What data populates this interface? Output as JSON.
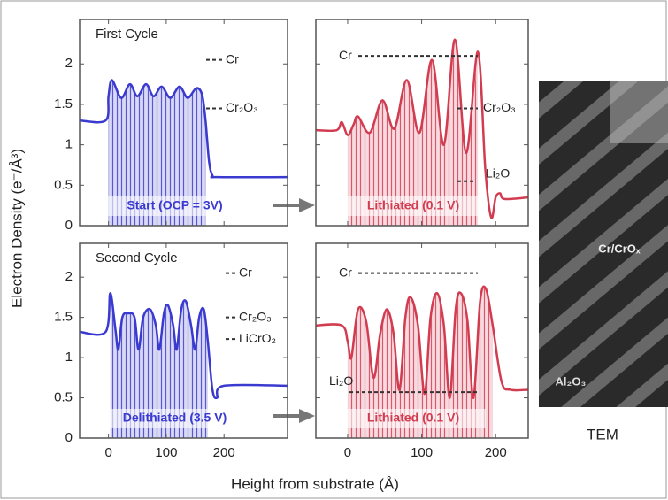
{
  "y_label": "Electron Density (e⁻/Å³)",
  "x_label": "Height from substrate (Å)",
  "image": {
    "labels": [
      "Cr/CrOₓ",
      "Al₂O₃"
    ],
    "caption": "TEM"
  },
  "chart_data": [
    {
      "type": "line",
      "title": "First Cycle",
      "label": "Start (OCP = 3V)",
      "xlim": [
        -50,
        310
      ],
      "ylim": [
        0,
        2.55
      ],
      "xticks": [
        0,
        100,
        200
      ],
      "yticks": [
        0,
        0.5,
        1,
        1.5,
        2
      ],
      "series": [
        {
          "color": "#3a3ad0",
          "x": [
            -50,
            -5,
            0,
            6,
            22,
            37,
            50,
            65,
            78,
            92,
            107,
            123,
            137,
            152,
            162,
            168,
            174,
            180,
            190,
            310
          ],
          "values": [
            1.3,
            1.3,
            1.6,
            1.8,
            1.58,
            1.75,
            1.6,
            1.75,
            1.6,
            1.72,
            1.58,
            1.72,
            1.58,
            1.7,
            1.62,
            1.3,
            0.8,
            0.62,
            0.6,
            0.6
          ]
        }
      ],
      "annotations": [
        {
          "label": "Cr",
          "y": 2.05
        },
        {
          "label": "Cr₂O₃",
          "y": 1.45
        }
      ]
    },
    {
      "type": "line",
      "label": "Lithiated (0.1 V)",
      "xlim": [
        -43,
        244
      ],
      "ylim": [
        0,
        2.55
      ],
      "xticks": [
        0,
        100,
        200
      ],
      "yticks": [
        0,
        0.5,
        1,
        1.5,
        2
      ],
      "series": [
        {
          "color": "#d23c50",
          "x": [
            -43,
            -15,
            -8,
            0,
            8,
            14,
            30,
            47,
            63,
            80,
            97,
            114,
            130,
            145,
            160,
            176,
            186,
            194,
            200,
            206,
            212,
            244
          ],
          "values": [
            1.18,
            1.18,
            1.28,
            1.12,
            1.25,
            1.35,
            1.15,
            1.55,
            1.2,
            1.8,
            1.15,
            2.05,
            1.0,
            2.3,
            0.9,
            2.15,
            0.7,
            0.1,
            0.35,
            0.4,
            0.33,
            0.35
          ]
        }
      ],
      "annotations": [
        {
          "label": "Cr",
          "y": 2.1
        },
        {
          "label": "Cr₂O₃",
          "y": 1.45
        },
        {
          "label": "Li₂O",
          "y": 0.55
        }
      ]
    },
    {
      "type": "line",
      "title": "Second Cycle",
      "label": "Delithiated (3.5 V)",
      "xlim": [
        -50,
        310
      ],
      "ylim": [
        0,
        2.42
      ],
      "xticks": [
        0,
        100,
        200
      ],
      "yticks": [
        0,
        0.5,
        1,
        1.5,
        2
      ],
      "series": [
        {
          "color": "#3a3ad0",
          "x": [
            -50,
            -5,
            3,
            12,
            17,
            24,
            34,
            45,
            52,
            60,
            72,
            82,
            88,
            96,
            103,
            112,
            118,
            126,
            134,
            143,
            150,
            157,
            165,
            172,
            180,
            188,
            200,
            310
          ],
          "values": [
            1.32,
            1.32,
            1.8,
            1.35,
            1.1,
            1.5,
            1.55,
            1.5,
            1.1,
            1.5,
            1.6,
            1.4,
            1.1,
            1.55,
            1.65,
            1.4,
            1.1,
            1.6,
            1.7,
            1.4,
            1.1,
            1.5,
            1.6,
            1.2,
            0.6,
            0.5,
            0.65,
            0.65
          ]
        }
      ],
      "annotations": [
        {
          "label": "Cr",
          "y": 2.05
        },
        {
          "label": "Cr₂O₃",
          "y": 1.5
        },
        {
          "label": "LiCrO₂",
          "y": 1.23
        }
      ]
    },
    {
      "type": "line",
      "label": "Lithiated (0.1 V)",
      "xlim": [
        -43,
        244
      ],
      "ylim": [
        0,
        2.42
      ],
      "xticks": [
        0,
        100,
        200
      ],
      "yticks": [
        0,
        0.5,
        1,
        1.5,
        2
      ],
      "series": [
        {
          "color": "#d23c50",
          "x": [
            -43,
            -8,
            0,
            5,
            14,
            25,
            35,
            44,
            53,
            62,
            70,
            78,
            85,
            95,
            104,
            112,
            121,
            130,
            138,
            146,
            153,
            162,
            170,
            179,
            187,
            196,
            208,
            220,
            244
          ],
          "values": [
            1.4,
            1.4,
            1.2,
            1.0,
            1.6,
            1.45,
            0.75,
            1.3,
            1.6,
            1.3,
            0.6,
            1.5,
            1.75,
            1.4,
            0.55,
            1.5,
            1.8,
            1.4,
            0.5,
            1.6,
            1.8,
            1.45,
            0.5,
            1.7,
            1.85,
            1.4,
            0.7,
            0.6,
            0.6
          ]
        }
      ],
      "annotations": [
        {
          "label": "Cr",
          "y": 2.05
        },
        {
          "label": "Li₂O",
          "y": 0.57
        }
      ]
    }
  ]
}
